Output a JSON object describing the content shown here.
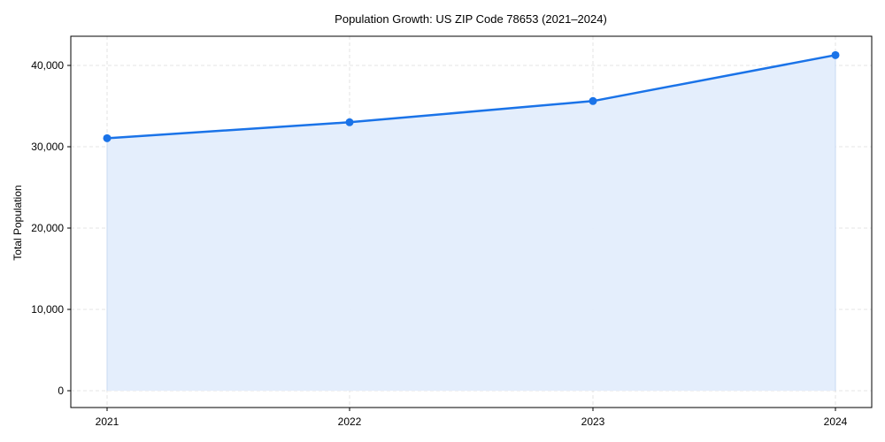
{
  "chart_data": {
    "type": "area",
    "title": "Population Growth: US ZIP Code 78653 (2021–2024)",
    "xlabel": "",
    "ylabel": "Total Population",
    "categories": [
      "2021",
      "2022",
      "2023",
      "2024"
    ],
    "series": [
      {
        "name": "Total Population",
        "values": [
          31050,
          33010,
          35620,
          41270
        ],
        "color": "#1a73e8",
        "fill": "#e3edfc"
      }
    ],
    "yticks": [
      0,
      10000,
      20000,
      30000,
      40000
    ],
    "ytick_labels": [
      "0",
      "10,000",
      "20,000",
      "30,000",
      "40,000"
    ],
    "ylim": [
      -2150,
      43300
    ],
    "grid": true,
    "legend": "none"
  }
}
